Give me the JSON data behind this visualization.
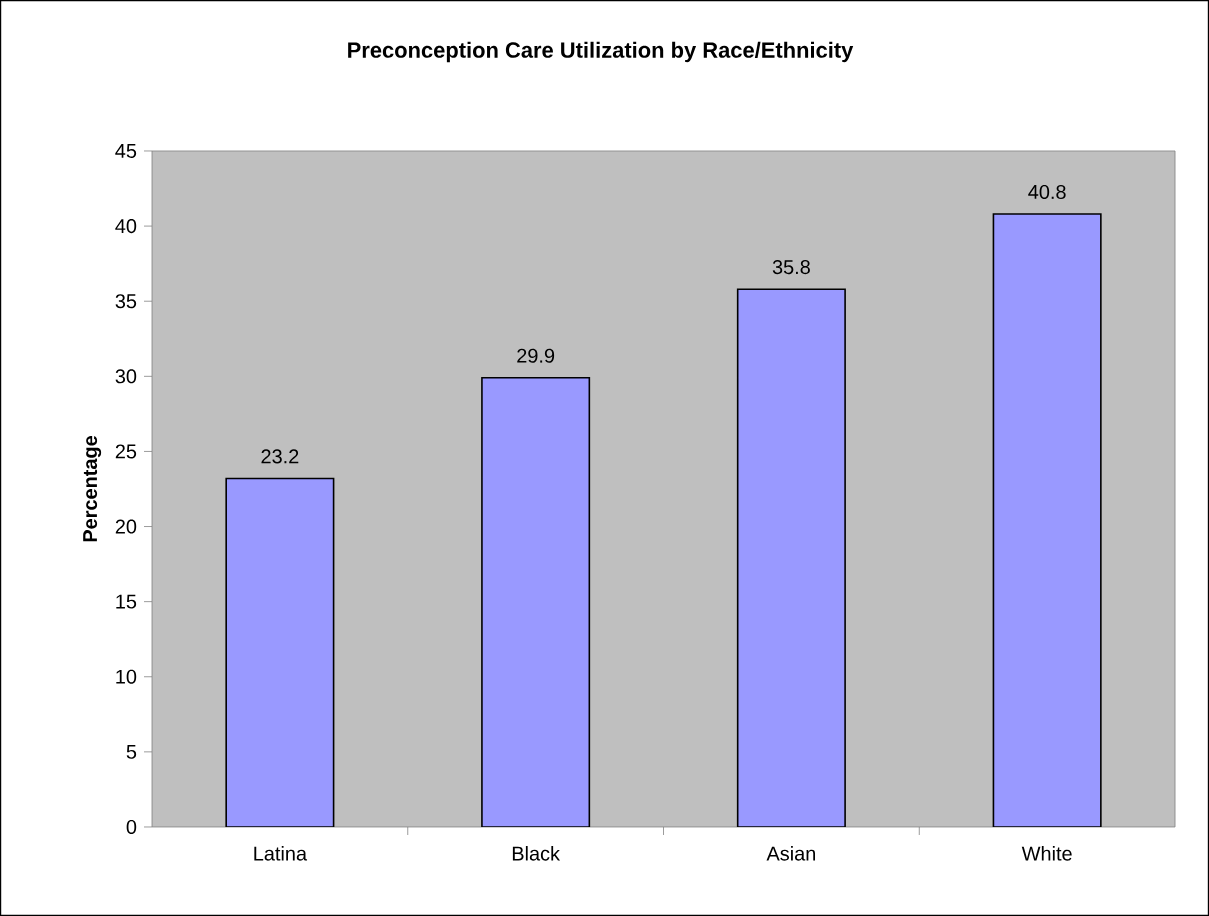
{
  "chart_data": {
    "type": "bar",
    "title": "Preconception Care Utilization by Race/Ethnicity",
    "ylabel": "Percentage",
    "categories": [
      "Latina",
      "Black",
      "Asian",
      "White"
    ],
    "values": [
      23.2,
      29.9,
      35.8,
      40.8
    ],
    "color": "#9999ff",
    "ylim": [
      0,
      45
    ],
    "yticks": [
      0,
      5,
      10,
      15,
      20,
      25,
      30,
      35,
      40,
      45
    ],
    "data_labels": true
  }
}
